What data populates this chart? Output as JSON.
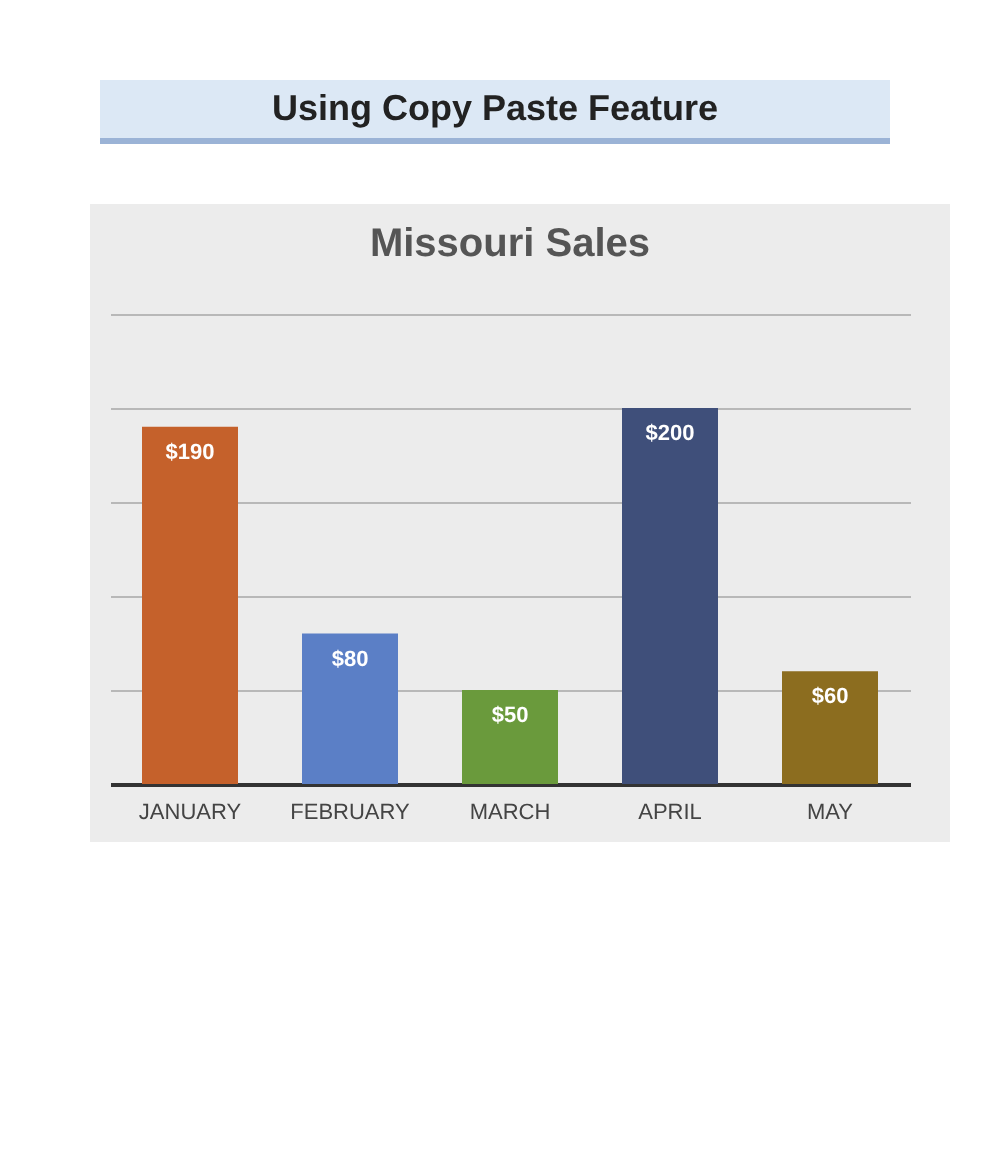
{
  "chart_data": {
    "type": "bar",
    "title": "Missouri Sales",
    "annotations": [
      "Using Copy Paste Feature"
    ],
    "categories": [
      "JANUARY",
      "FEBRUARY",
      "MARCH",
      "APRIL",
      "MAY"
    ],
    "values": [
      190,
      80,
      50,
      200,
      60
    ],
    "colors": [
      "#c5612b",
      "#5b7fc6",
      "#6a9a3c",
      "#3f4f7a",
      "#8c6d1f"
    ],
    "value_labels": [
      "$190",
      "$80",
      "$50",
      "$200",
      "$60"
    ],
    "ylim": [
      0,
      250
    ],
    "yticks": [
      {
        "value": 0,
        "label": null
      },
      {
        "value": 50,
        "label": null
      },
      {
        "value": 100,
        "label": null
      },
      {
        "value": 150,
        "label": null
      },
      {
        "value": 200,
        "label": null
      },
      {
        "value": 250,
        "label": null
      }
    ],
    "grid": "y",
    "tick_labels": "x"
  }
}
